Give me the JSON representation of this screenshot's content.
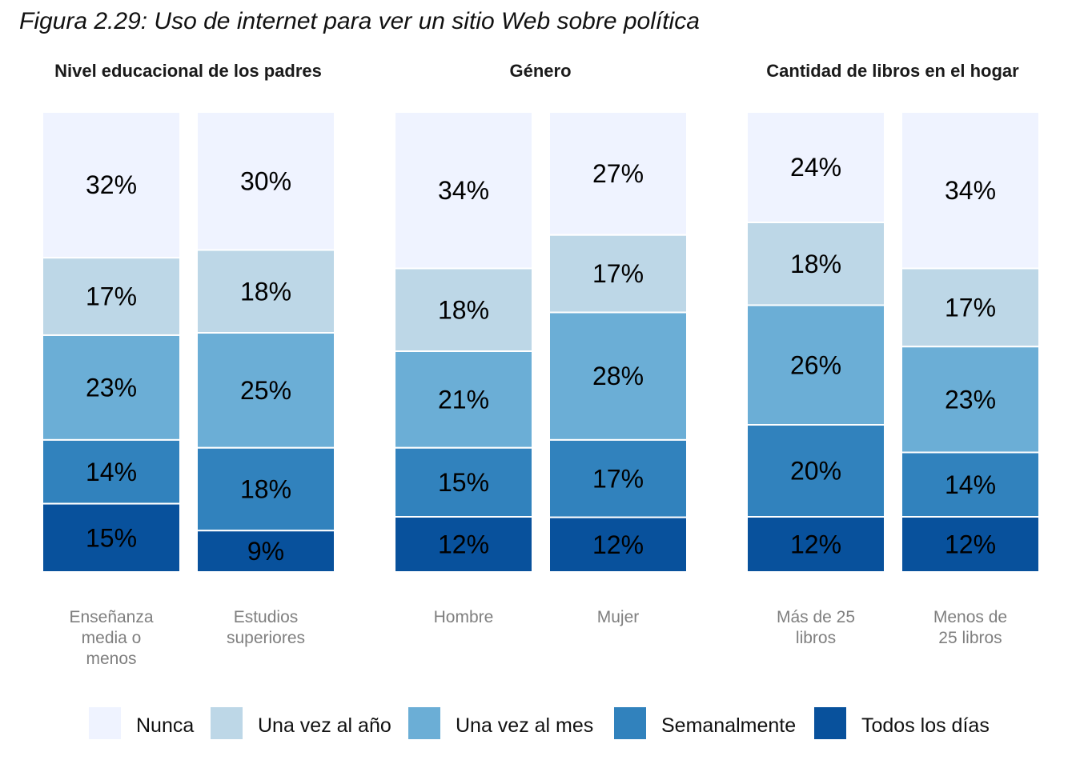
{
  "figure_title": "Figura 2.29: Uso de internet para ver un sitio Web sobre política",
  "chart_data": {
    "type": "bar",
    "stacked": true,
    "unit": "%",
    "series": [
      {
        "name": "Nunca",
        "color": "#eff3ff"
      },
      {
        "name": "Una vez al año",
        "color": "#bdd7e7"
      },
      {
        "name": "Una vez al mes",
        "color": "#6baed6"
      },
      {
        "name": "Semanalmente",
        "color": "#3182bd"
      },
      {
        "name": "Todos los días",
        "color": "#08519c"
      }
    ],
    "panels": [
      {
        "title": "Nivel educacional de los padres",
        "bars": [
          {
            "category": "Enseñanza media o menos",
            "category_lines": [
              "Enseñanza",
              "media o",
              "menos"
            ],
            "values": [
              32,
              17,
              23,
              14,
              15
            ]
          },
          {
            "category": "Estudios superiores",
            "category_lines": [
              "Estudios",
              "superiores"
            ],
            "values": [
              30,
              18,
              25,
              18,
              9
            ]
          }
        ]
      },
      {
        "title": "Género",
        "bars": [
          {
            "category": "Hombre",
            "category_lines": [
              "Hombre"
            ],
            "values": [
              34,
              18,
              21,
              15,
              12
            ]
          },
          {
            "category": "Mujer",
            "category_lines": [
              "Mujer"
            ],
            "values": [
              27,
              17,
              28,
              17,
              12
            ]
          }
        ]
      },
      {
        "title": "Cantidad de libros en el hogar",
        "bars": [
          {
            "category": "Más de 25 libros",
            "category_lines": [
              "Más de 25",
              "libros"
            ],
            "values": [
              24,
              18,
              26,
              20,
              12
            ]
          },
          {
            "category": "Menos de 25 libros",
            "category_lines": [
              "Menos de",
              "25 libros"
            ],
            "values": [
              34,
              17,
              23,
              14,
              12
            ]
          }
        ]
      }
    ],
    "legend_position": "bottom",
    "grid": false
  }
}
